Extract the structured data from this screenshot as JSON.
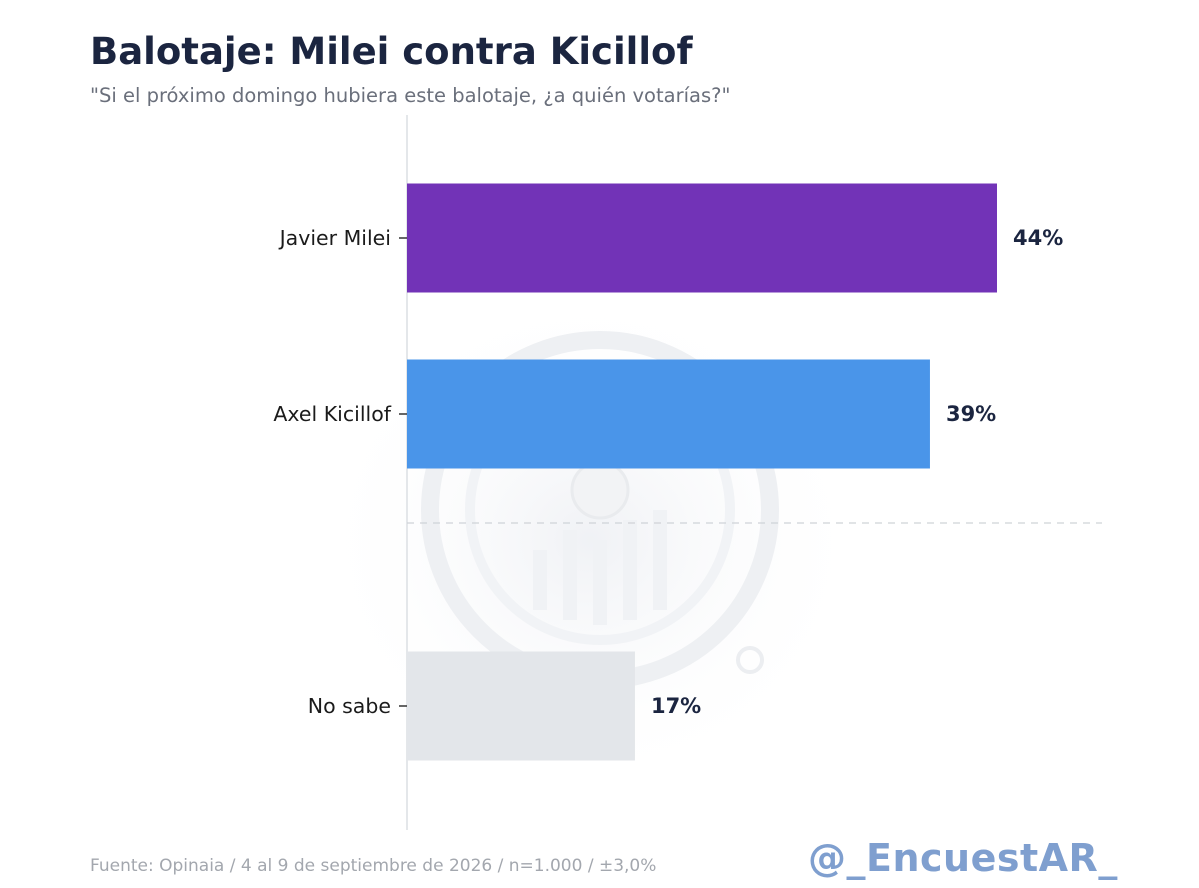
{
  "header": {
    "title": "Balotaje: Milei contra Kicillof",
    "subtitle": "\"Si el próximo domingo hubiera este balotaje, ¿a quién votarías?\""
  },
  "footer": {
    "source": "Fuente: Opinaia / 4 al 9 de septiembre de 2026 / n=1.000 / ±3,0%",
    "brand": "@_EncuestAR_"
  },
  "colors": {
    "milei": "#7233b7",
    "kicillof": "#4a95e9",
    "no_sabe": "#e3e6ea",
    "divider": "#cfd3d8"
  },
  "chart_data": {
    "type": "bar",
    "orientation": "horizontal",
    "title": "Balotaje: Milei contra Kicillof",
    "subtitle": "\"Si el próximo domingo hubiera este balotaje, ¿a quién votarías?\"",
    "categories": [
      "Javier Milei",
      "Axel Kicillof",
      "No sabe"
    ],
    "values": [
      44,
      39,
      17
    ],
    "value_labels": [
      "44%",
      "39%",
      "17%"
    ],
    "bar_colors": [
      "#7233b7",
      "#4a95e9",
      "#e3e6ea"
    ],
    "xlim": [
      0,
      52
    ],
    "unit": "%",
    "grid": false,
    "divider_after_category": "Axel Kicillof"
  }
}
